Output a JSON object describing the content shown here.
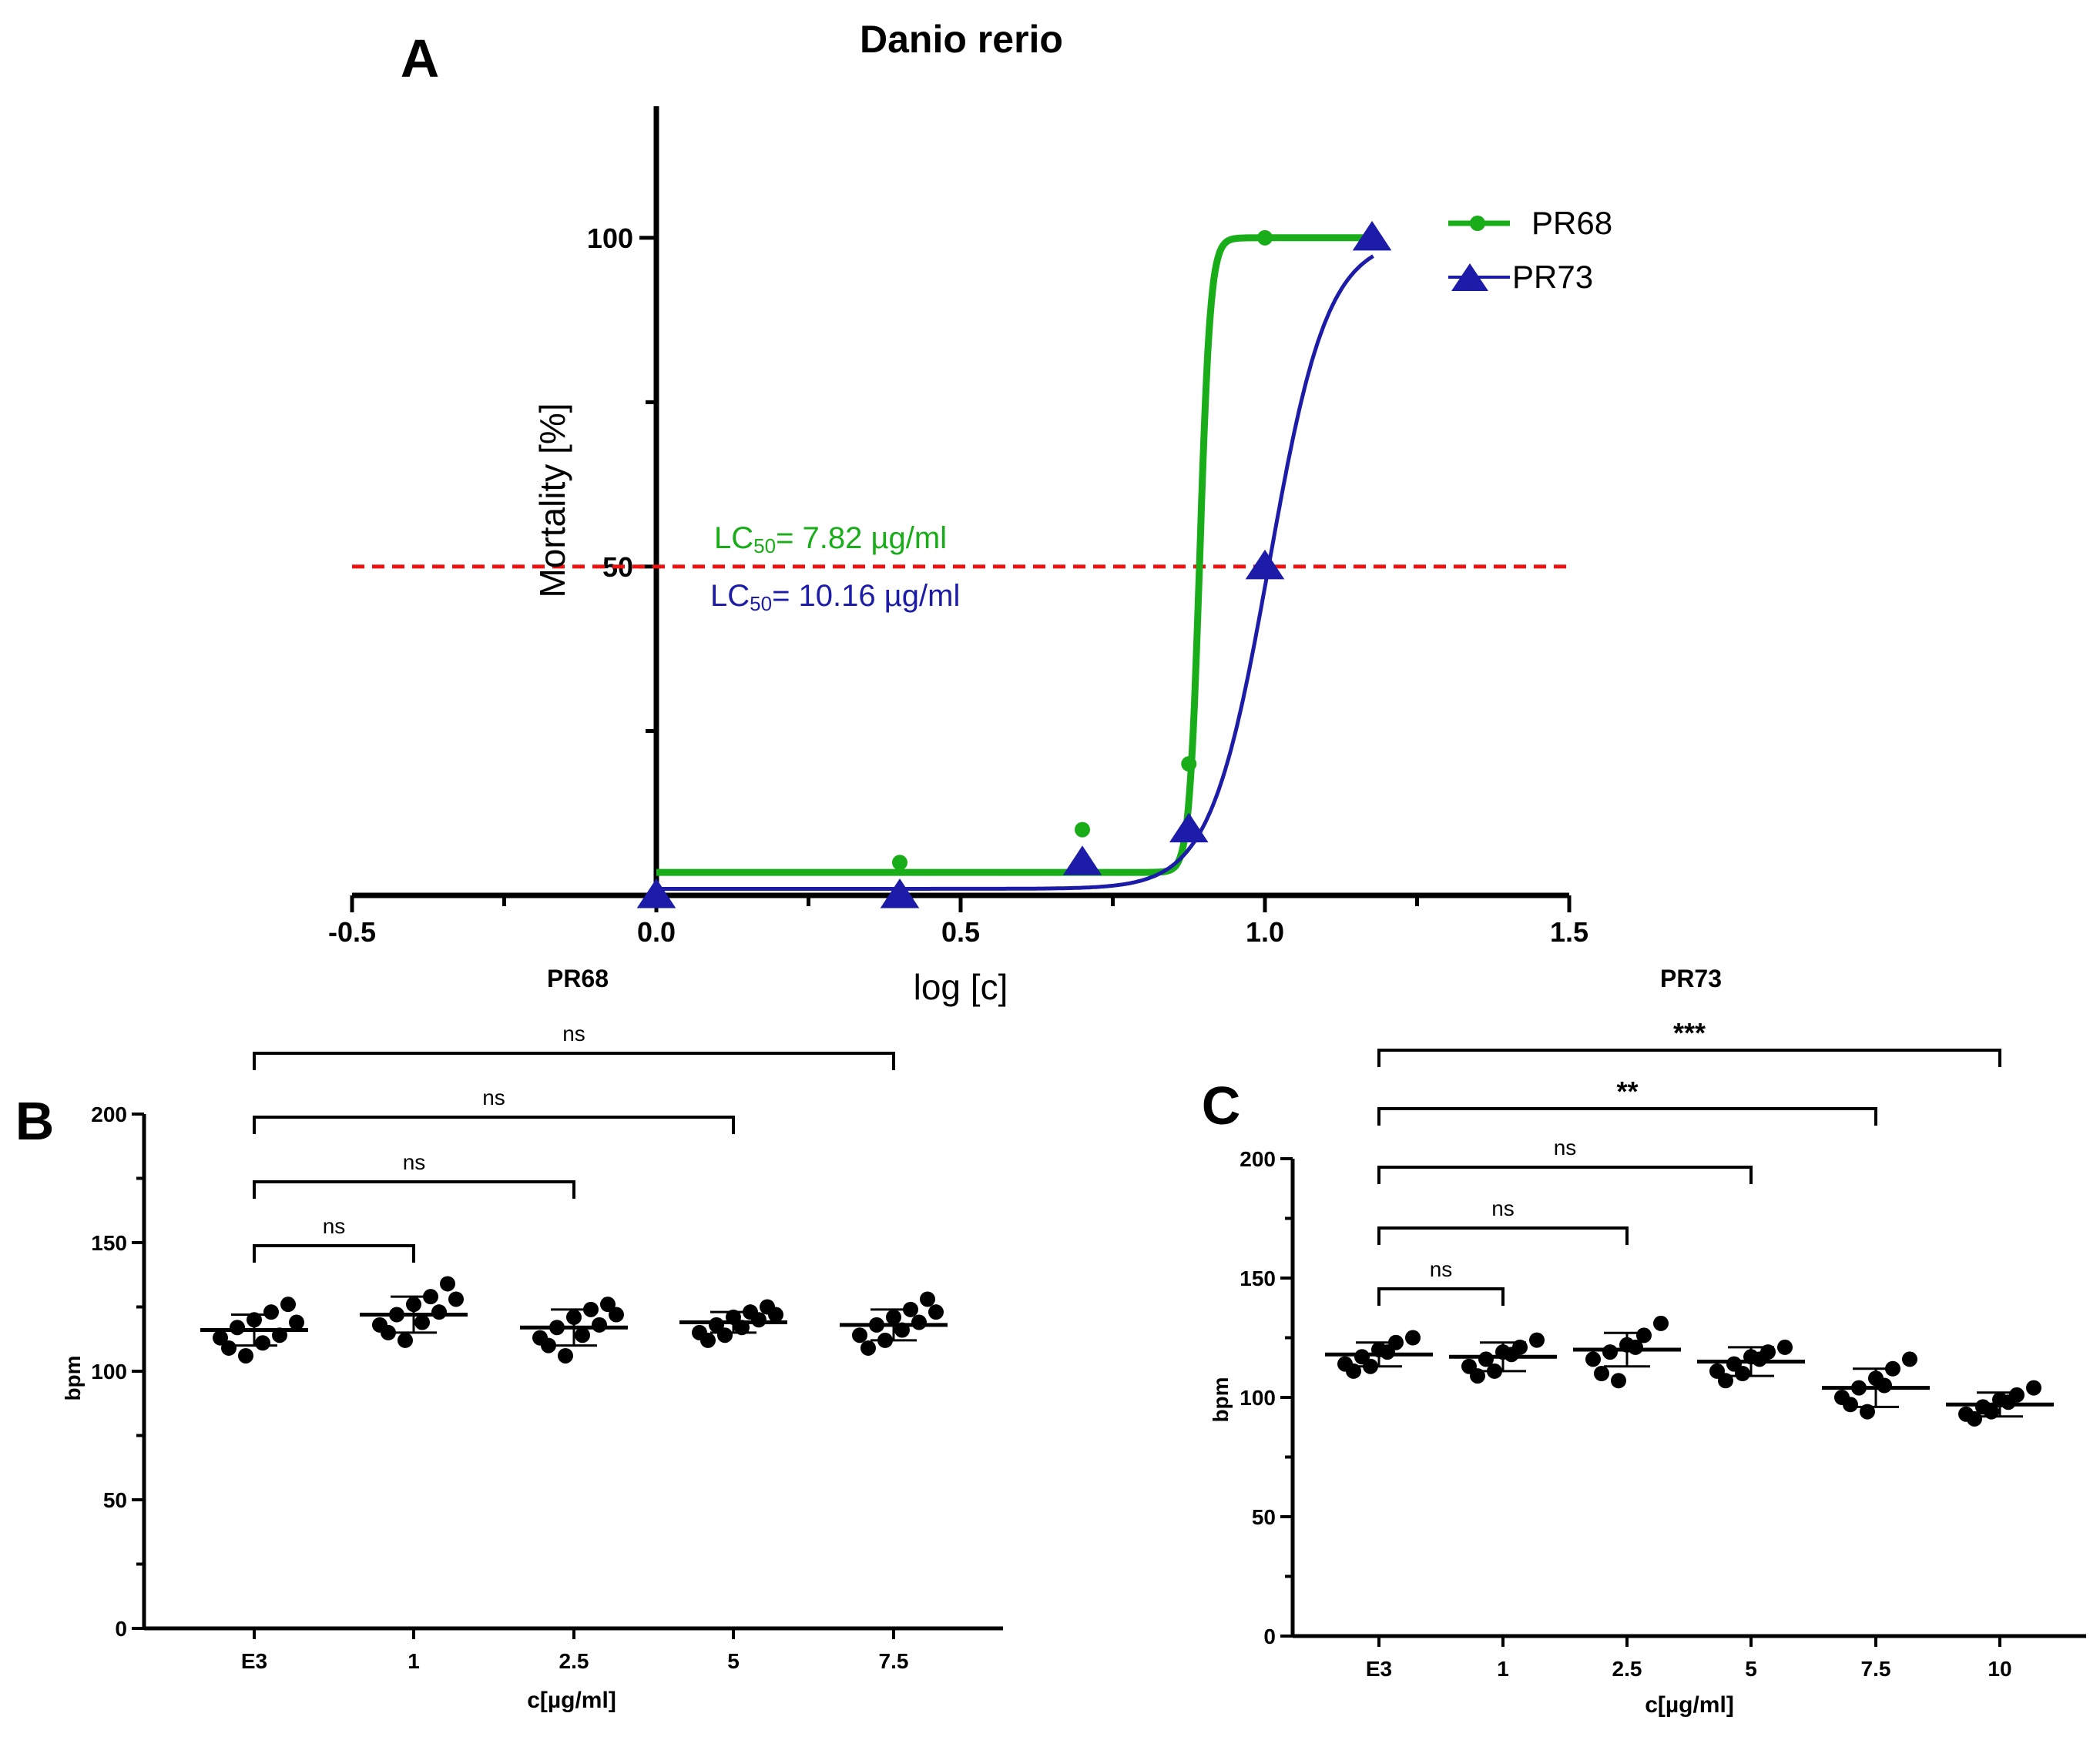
{
  "colors": {
    "pr68": "#1aad1a",
    "pr73": "#1c1ca8",
    "threshold": "#ee1111",
    "ink": "#000000"
  },
  "chart_data": [
    {
      "panel": "A",
      "type": "scatter",
      "title": "Danio rerio",
      "xlabel": "log [c]",
      "ylabel": "Mortality [%]",
      "xlim": [
        -0.5,
        1.5
      ],
      "ylim": [
        0,
        120
      ],
      "x_ticks": [
        "-0.5",
        "0.0",
        "0.5",
        "1.0",
        "1.5"
      ],
      "y_ticks": [
        "50",
        "100"
      ],
      "threshold": 50,
      "annotations": [
        {
          "series": "PR68",
          "prefix": "LC",
          "sub": "50",
          "text": "= 7.82 µg/ml"
        },
        {
          "series": "PR73",
          "prefix": "LC",
          "sub": "50",
          "text": "= 10.16 µg/ml"
        }
      ],
      "series": [
        {
          "name": "PR68",
          "marker": "circle",
          "x": [
            0.0,
            0.4,
            0.7,
            0.875,
            1.0
          ],
          "y": [
            0,
            5,
            10,
            20,
            100
          ],
          "fit": {
            "bottom": 3.5,
            "top": 100,
            "logec50": 0.893,
            "hill": 50
          }
        },
        {
          "name": "PR73",
          "marker": "triangle",
          "x": [
            0.0,
            0.4,
            0.7,
            0.875,
            1.0,
            1.176
          ],
          "y": [
            0,
            0,
            5,
            10,
            50,
            100
          ],
          "fit": {
            "bottom": 1,
            "top": 100,
            "logec50": 1.007,
            "hill": 9
          }
        }
      ]
    },
    {
      "panel": "B",
      "type": "scatter",
      "title": "PR68",
      "xlabel": "c[µg/ml]",
      "ylabel": "bpm",
      "ylim": [
        0,
        200
      ],
      "y_ticks": [
        "0",
        "50",
        "100",
        "150",
        "200"
      ],
      "categories": [
        "E3",
        "1",
        "2.5",
        "5",
        "7.5"
      ],
      "groups": [
        {
          "mean": 116,
          "sd": 6,
          "points": [
            113,
            117,
            120,
            123,
            126,
            109,
            106,
            111,
            114,
            119
          ]
        },
        {
          "mean": 122,
          "sd": 7,
          "points": [
            118,
            122,
            126,
            129,
            134,
            115,
            112,
            119,
            123,
            128
          ]
        },
        {
          "mean": 117,
          "sd": 7,
          "points": [
            113,
            117,
            121,
            124,
            126,
            110,
            106,
            114,
            118,
            122
          ]
        },
        {
          "mean": 119,
          "sd": 4,
          "points": [
            115,
            118,
            121,
            123,
            125,
            112,
            114,
            117,
            120,
            122
          ]
        },
        {
          "mean": 118,
          "sd": 6,
          "points": [
            114,
            118,
            121,
            124,
            128,
            109,
            112,
            116,
            119,
            123
          ]
        }
      ],
      "comparisons": [
        {
          "from": "E3",
          "to": "1",
          "label": "ns"
        },
        {
          "from": "E3",
          "to": "2.5",
          "label": "ns"
        },
        {
          "from": "E3",
          "to": "5",
          "label": "ns"
        },
        {
          "from": "E3",
          "to": "7.5",
          "label": "ns"
        }
      ]
    },
    {
      "panel": "C",
      "type": "scatter",
      "title": "PR73",
      "xlabel": "c[µg/ml]",
      "ylabel": "bpm",
      "ylim": [
        0,
        200
      ],
      "y_ticks": [
        "0",
        "50",
        "100",
        "150",
        "200"
      ],
      "categories": [
        "E3",
        "1",
        "2.5",
        "5",
        "7.5",
        "10"
      ],
      "groups": [
        {
          "mean": 118,
          "sd": 5,
          "points": [
            114,
            117,
            120,
            123,
            125,
            111,
            113,
            119
          ]
        },
        {
          "mean": 117,
          "sd": 6,
          "points": [
            113,
            116,
            119,
            121,
            124,
            109,
            111,
            118
          ]
        },
        {
          "mean": 120,
          "sd": 7,
          "points": [
            116,
            119,
            122,
            126,
            131,
            110,
            107,
            121
          ]
        },
        {
          "mean": 115,
          "sd": 6,
          "points": [
            111,
            114,
            117,
            119,
            121,
            107,
            110,
            116
          ]
        },
        {
          "mean": 104,
          "sd": 8,
          "points": [
            100,
            104,
            108,
            112,
            116,
            97,
            94,
            105
          ]
        },
        {
          "mean": 97,
          "sd": 5,
          "points": [
            93,
            96,
            99,
            101,
            104,
            91,
            94,
            98
          ]
        }
      ],
      "comparisons": [
        {
          "from": "E3",
          "to": "1",
          "label": "ns"
        },
        {
          "from": "E3",
          "to": "2.5",
          "label": "ns"
        },
        {
          "from": "E3",
          "to": "5",
          "label": "ns"
        },
        {
          "from": "E3",
          "to": "7.5",
          "label": "**"
        },
        {
          "from": "E3",
          "to": "10",
          "label": "***"
        }
      ]
    }
  ]
}
